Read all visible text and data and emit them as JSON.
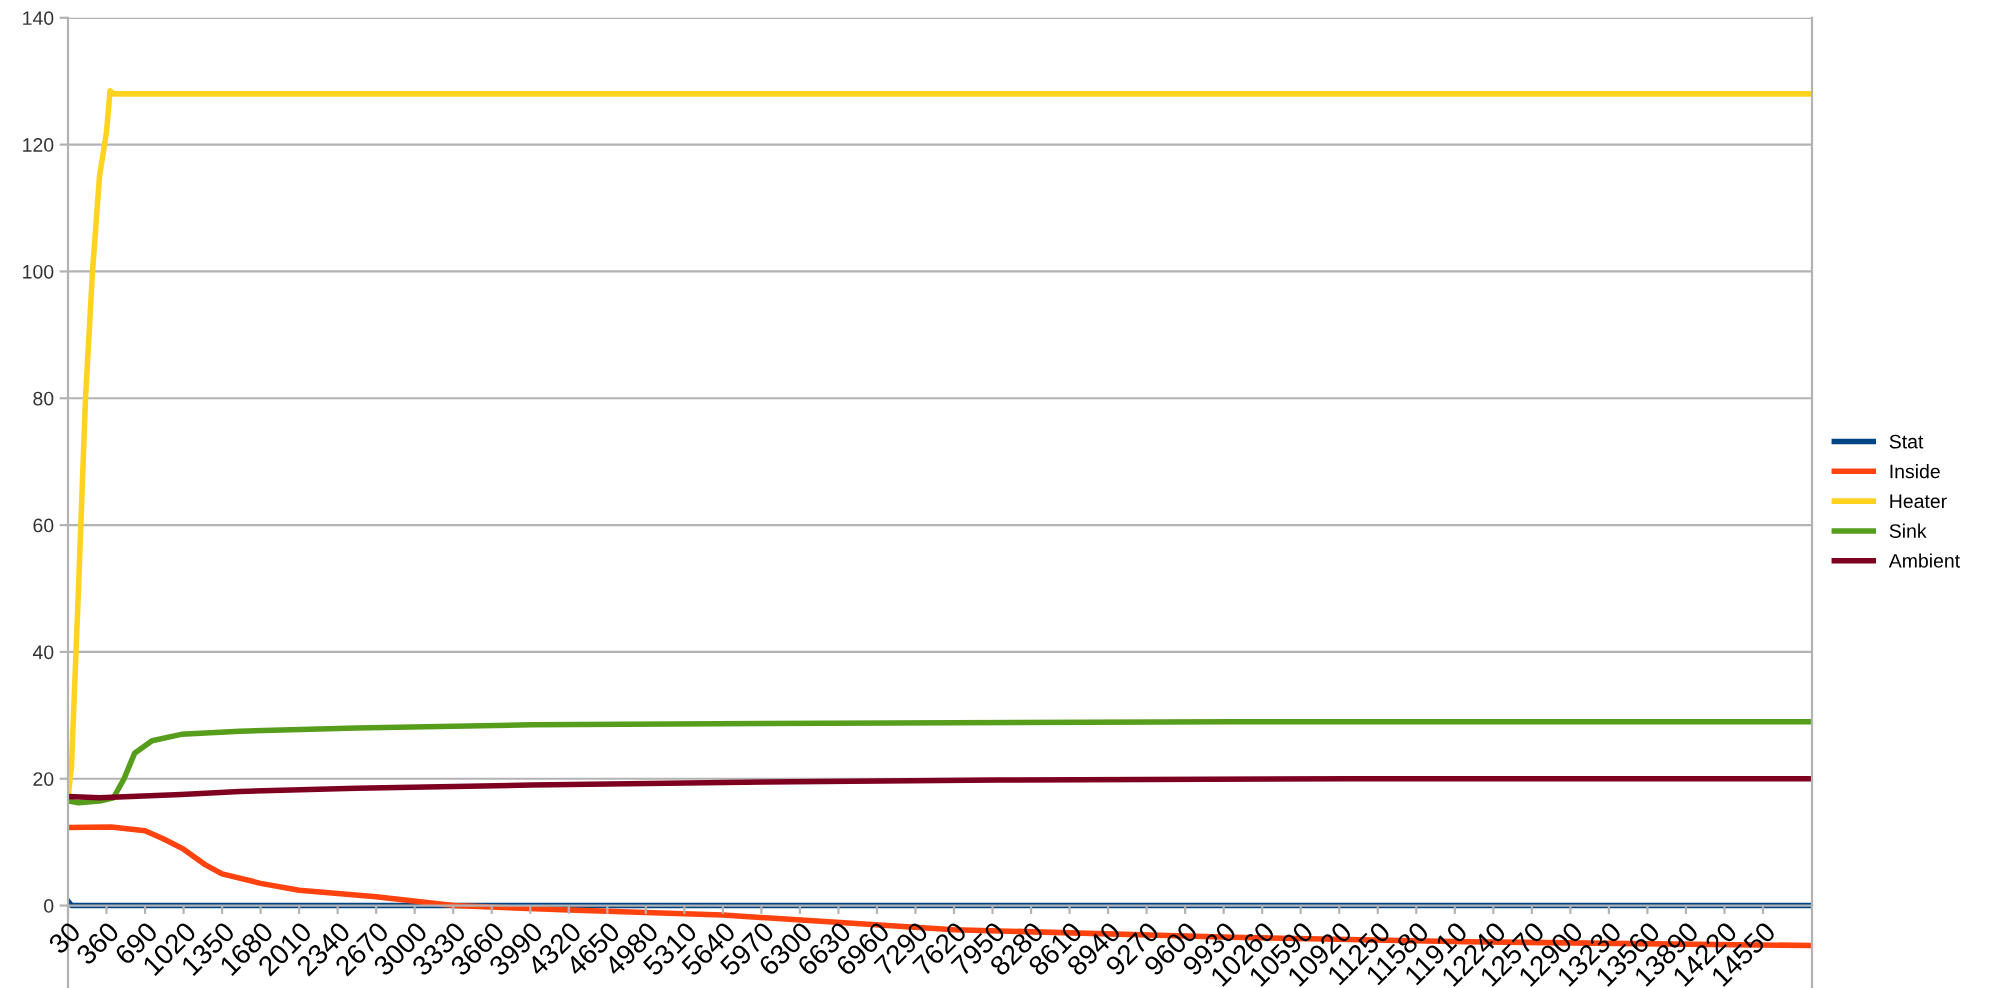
{
  "chart_data": {
    "type": "line",
    "xlim": [
      30,
      14970
    ],
    "xticks": [
      30,
      360,
      690,
      1020,
      1350,
      1680,
      2010,
      2340,
      2670,
      3000,
      3330,
      3660,
      3990,
      4320,
      4650,
      4980,
      5310,
      5640,
      5970,
      6300,
      6630,
      6960,
      7290,
      7620,
      7950,
      8280,
      8610,
      8940,
      9270,
      9600,
      9930,
      10260,
      10590,
      10920,
      11250,
      11580,
      11910,
      12240,
      12570,
      12900,
      13230,
      13560,
      13890,
      14220,
      14550
    ],
    "ylim": [
      -13,
      140
    ],
    "yticks": [
      0,
      20,
      40,
      60,
      80,
      100,
      120,
      140
    ],
    "grid": "y",
    "legend": "right",
    "marker": "none",
    "line_style": "solid",
    "series": [
      {
        "name": "Stat",
        "color": "#004586",
        "x": [
          30,
          60,
          90,
          14970
        ],
        "values": [
          0.7,
          0,
          0,
          0
        ]
      },
      {
        "name": "Inside",
        "color": "#ff420e",
        "x": [
          30,
          400,
          690,
          850,
          1020,
          1200,
          1350,
          1680,
          2010,
          2670,
          3330,
          4320,
          5640,
          7620,
          10000,
          12000,
          14970
        ],
        "values": [
          12.3,
          12.4,
          11.8,
          10.5,
          8.9,
          6.5,
          5,
          3.5,
          2.4,
          1.4,
          0,
          -0.7,
          -1.5,
          -3.8,
          -5,
          -5.7,
          -6.3
        ]
      },
      {
        "name": "Heater",
        "color": "#ffd320",
        "x": [
          30,
          60,
          120,
          180,
          240,
          300,
          360,
          390,
          420,
          14970
        ],
        "values": [
          17,
          22,
          50,
          80,
          100,
          115,
          122,
          128.5,
          128,
          128
        ]
      },
      {
        "name": "Sink",
        "color": "#579d1c",
        "x": [
          30,
          120,
          300,
          420,
          510,
          600,
          750,
          1000,
          1500,
          2500,
          4000,
          6000,
          10000,
          14970
        ],
        "values": [
          16.5,
          16.2,
          16.5,
          17,
          20,
          24,
          26,
          27,
          27.5,
          28,
          28.5,
          28.7,
          29,
          29
        ]
      },
      {
        "name": "Ambient",
        "color": "#7e0021",
        "x": [
          30,
          300,
          1000,
          1500,
          2500,
          4000,
          6000,
          8000,
          11000,
          14970
        ],
        "values": [
          17.2,
          17,
          17.5,
          18,
          18.5,
          19,
          19.5,
          19.8,
          20,
          20
        ]
      }
    ]
  }
}
